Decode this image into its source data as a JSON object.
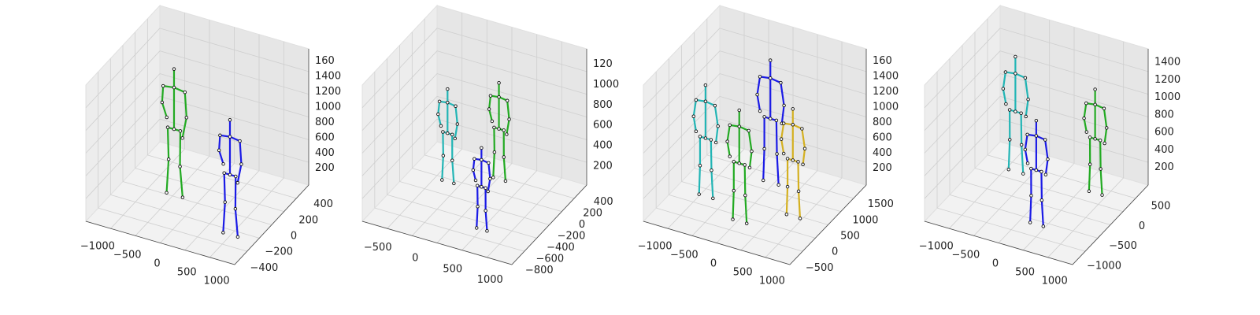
{
  "chart_data": [
    {
      "type": "scatter3d",
      "title": "",
      "grid": true,
      "ticks": {
        "x": [
          "−1000",
          "−500",
          "0",
          "500",
          "1000"
        ],
        "y": [
          "−400",
          "−200",
          "0",
          "200",
          "400"
        ],
        "z": [
          "200",
          "400",
          "600",
          "800",
          "1000",
          "1200",
          "1400",
          "160"
        ]
      },
      "skeletons": [
        {
          "color": "#22aa22",
          "pelvis": [
            -600,
            150,
            650
          ],
          "height": 1700
        },
        {
          "color": "#1a1ae6",
          "pelvis": [
            700,
            -100,
            600
          ],
          "height": 1550
        }
      ]
    },
    {
      "type": "scatter3d",
      "title": "",
      "grid": true,
      "ticks": {
        "x": [
          "−500",
          "0",
          "500",
          "1000"
        ],
        "y": [
          "−800",
          "−600",
          "−400",
          "−200",
          "0",
          "200",
          "400"
        ],
        "z": [
          "200",
          "400",
          "600",
          "800",
          "1000",
          "120"
        ]
      },
      "skeletons": [
        {
          "color": "#22b5b5",
          "pelvis": [
            -700,
            50,
            550
          ],
          "height": 1250
        },
        {
          "color": "#22aa22",
          "pelvis": [
            100,
            150,
            700
          ],
          "height": 1300
        },
        {
          "color": "#1a1ae6",
          "pelvis": [
            400,
            -500,
            500
          ],
          "height": 1100
        }
      ]
    },
    {
      "type": "scatter3d",
      "title": "",
      "grid": true,
      "ticks": {
        "x": [
          "−1000",
          "−500",
          "0",
          "500",
          "1000"
        ],
        "y": [
          "−500",
          "0",
          "500",
          "1000",
          "1500"
        ],
        "z": [
          "200",
          "400",
          "600",
          "800",
          "1000",
          "1200",
          "1400",
          "160"
        ]
      },
      "skeletons": [
        {
          "color": "#22b5b5",
          "pelvis": [
            -800,
            300,
            700
          ],
          "height": 1500
        },
        {
          "color": "#1a1ae6",
          "pelvis": [
            50,
            900,
            900
          ],
          "height": 1650
        },
        {
          "color": "#22aa22",
          "pelvis": [
            0,
            -100,
            700
          ],
          "height": 1500
        },
        {
          "color": "#d4b020",
          "pelvis": [
            700,
            400,
            700
          ],
          "height": 1450
        }
      ]
    },
    {
      "type": "scatter3d",
      "title": "",
      "grid": true,
      "ticks": {
        "x": [
          "−1000",
          "−500",
          "0",
          "500",
          "1000"
        ],
        "y": [
          "−1000",
          "−500",
          "0",
          "500"
        ],
        "z": [
          "200",
          "400",
          "600",
          "800",
          "1000",
          "1200",
          "1400"
        ]
      },
      "skeletons": [
        {
          "color": "#22b5b5",
          "pelvis": [
            -700,
            350,
            750
          ],
          "height": 1550
        },
        {
          "color": "#1a1ae6",
          "pelvis": [
            300,
            -700,
            700
          ],
          "height": 1400
        },
        {
          "color": "#22aa22",
          "pelvis": [
            700,
            350,
            700
          ],
          "height": 1400
        }
      ]
    }
  ]
}
